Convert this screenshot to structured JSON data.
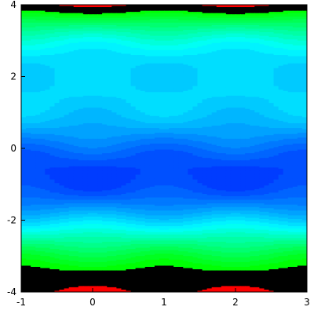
{
  "chart_data": {
    "type": "heatmap",
    "title": "",
    "xlabel": "",
    "ylabel": "",
    "xlim": [
      -1,
      3
    ],
    "ylim": [
      -4,
      4
    ],
    "x_ticks": [
      -1,
      0,
      1,
      2,
      3
    ],
    "x_tick_labels": [
      "-1",
      "0",
      "1",
      "2",
      "3"
    ],
    "y_ticks": [
      -4,
      -2,
      0,
      2,
      4
    ],
    "y_tick_labels": [
      "-4",
      "-2",
      "0",
      "2",
      "4"
    ],
    "grid": false,
    "legend": "none",
    "plot_style": "filled contour plot",
    "contour_levels": 24,
    "colors": {
      "high": "#ff0000",
      "peak": "#00ff00",
      "trough": "#0000ff",
      "saturated_band": "#000000",
      "contour_line": "#222222"
    }
  }
}
